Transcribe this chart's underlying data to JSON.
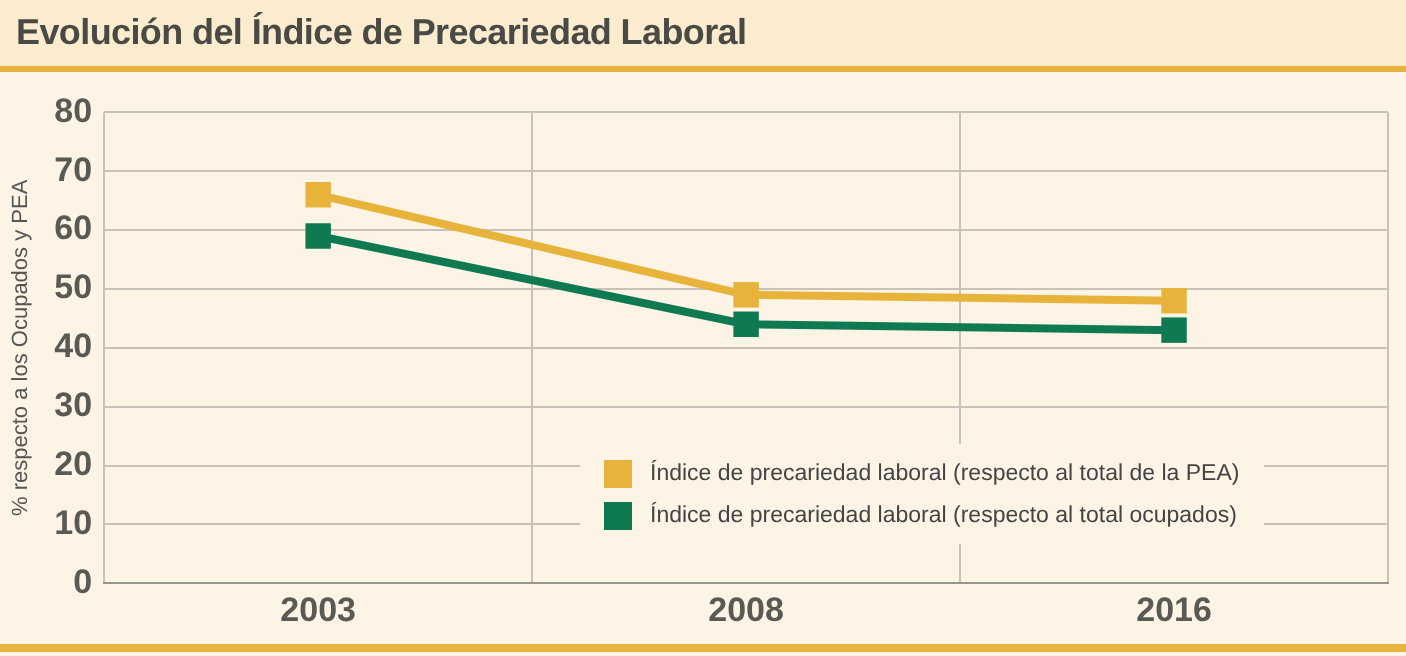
{
  "chart_data": {
    "type": "line",
    "title": "Evolución del Índice de Precariedad Laboral",
    "ylabel": "% respecto a los Ocupados y PEA",
    "categories": [
      "2003",
      "2008",
      "2016"
    ],
    "series": [
      {
        "name": "Índice de precariedad laboral (respecto al total de la PEA)",
        "color": "#e8b33a",
        "values": [
          66,
          49,
          48
        ]
      },
      {
        "name": "Índice de precariedad laboral (respecto al total ocupados)",
        "color": "#0f7a52",
        "values": [
          59,
          44,
          43
        ]
      }
    ],
    "ylim": [
      0,
      80
    ],
    "yticks": [
      0,
      10,
      20,
      30,
      40,
      50,
      60,
      70,
      80
    ],
    "grid": true,
    "legend": "bottom",
    "marker": "square",
    "line_style": "solid"
  }
}
